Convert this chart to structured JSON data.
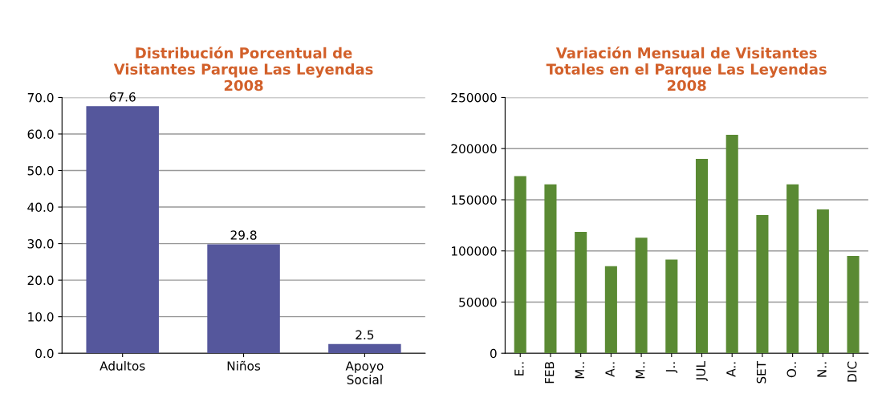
{
  "chart_data": [
    {
      "type": "bar",
      "title": "Distribución Porcentual de\nVisitantes Parque Las Leyendas\n2008",
      "categories": [
        "Adultos",
        "Niños",
        "Apoyo\nSocial"
      ],
      "series": [
        {
          "color": "#55579c",
          "values": [
            67.6,
            29.8,
            2.5
          ]
        }
      ],
      "ylim": [
        0,
        70
      ],
      "yticks": [
        {
          "value": 0,
          "label": "0.0"
        },
        {
          "value": 10,
          "label": "10.0"
        },
        {
          "value": 20,
          "label": "20.0"
        },
        {
          "value": 30,
          "label": "30.0"
        },
        {
          "value": 40,
          "label": "40.0"
        },
        {
          "value": 50,
          "label": "50.0"
        },
        {
          "value": 60,
          "label": "60.0"
        },
        {
          "value": 70,
          "label": "70.0"
        }
      ],
      "grid": "y",
      "data_labels": true
    },
    {
      "type": "bar",
      "title": "Variación Mensual de Visitantes\nTotales en el Parque Las Leyendas\n2008",
      "categories": [
        "E..",
        "FEB",
        "M..",
        "A..",
        "M..",
        "J..",
        "JUL",
        "A..",
        "SET",
        "O..",
        "N..",
        "DIC"
      ],
      "series": [
        {
          "color": "#5a8a33",
          "values": [
            173000,
            165000,
            118500,
            85000,
            113000,
            91500,
            190000,
            213500,
            135000,
            165000,
            140500,
            95000
          ]
        }
      ],
      "ylim": [
        0,
        250000
      ],
      "yticks": [
        0,
        50000,
        100000,
        150000,
        200000,
        250000
      ],
      "grid": "y"
    }
  ]
}
